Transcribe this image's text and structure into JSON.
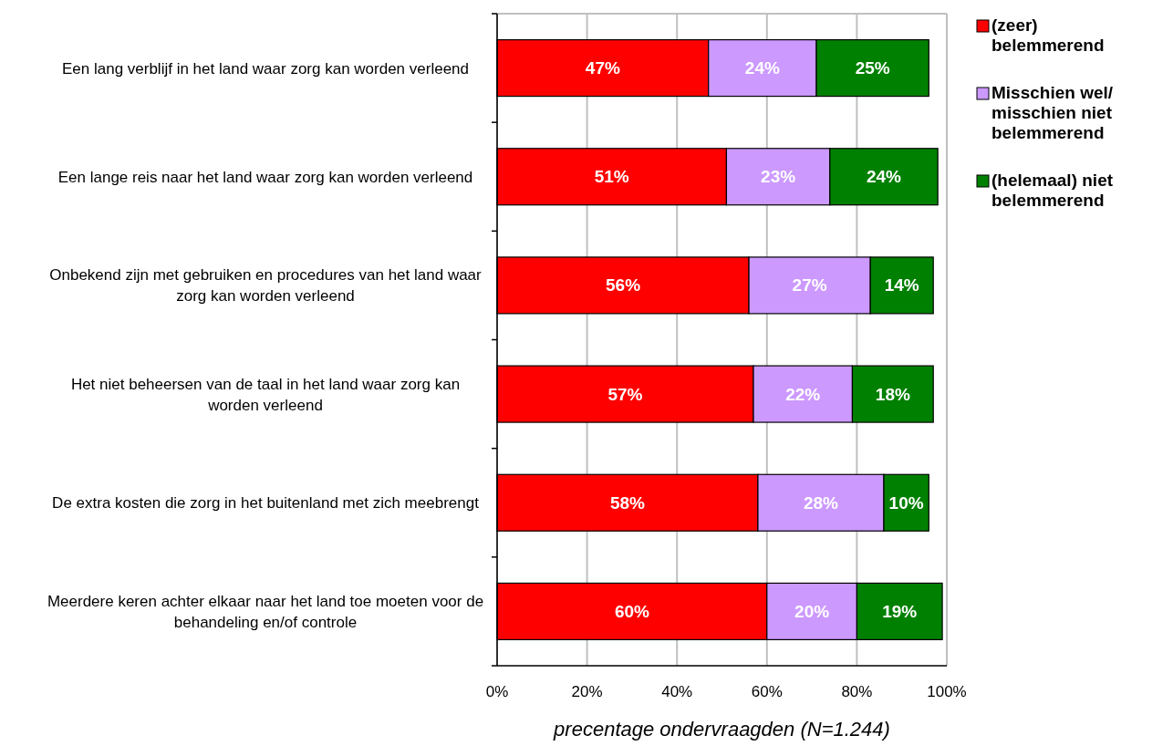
{
  "chart_data": {
    "type": "bar",
    "orientation": "horizontal",
    "stacked": true,
    "xlabel": "precentage ondervraagden (N=1.244)",
    "categories": [
      "Een lang verblijf in het land waar zorg kan worden verleend",
      "Een lange reis naar het land waar zorg kan worden verleend",
      "Onbekend zijn met gebruiken en procedures van het land waar zorg kan worden verleend",
      "Het niet beheersen van de taal in het land waar zorg kan worden verleend",
      "De extra kosten die zorg in het buitenland met zich meebrengt",
      "Meerdere keren achter elkaar naar het land toe moeten voor de behandeling en/of controle"
    ],
    "series": [
      {
        "name": "(zeer) belemmerend",
        "color": "#ff0000",
        "values": [
          47,
          51,
          56,
          57,
          58,
          60
        ],
        "value_labels": [
          "47%",
          "51%",
          "56%",
          "57%",
          "58%",
          "60%"
        ]
      },
      {
        "name": "Misschien wel/ misschien niet belemmerend",
        "color": "#cc99ff",
        "values": [
          24,
          23,
          27,
          22,
          28,
          20
        ],
        "value_labels": [
          "24%",
          "23%",
          "27%",
          "22%",
          "28%",
          "20%"
        ]
      },
      {
        "name": "(helemaal) niet belemmerend",
        "color": "#008000",
        "values": [
          25,
          24,
          14,
          18,
          10,
          19
        ],
        "value_labels": [
          "25%",
          "24%",
          "14%",
          "18%",
          "10%",
          "19%"
        ]
      }
    ],
    "xlim": [
      0,
      100
    ],
    "xticks": [
      {
        "value": 0,
        "label": "0%"
      },
      {
        "value": 20,
        "label": "20%"
      },
      {
        "value": 40,
        "label": "40%"
      },
      {
        "value": 60,
        "label": "60%"
      },
      {
        "value": 80,
        "label": "80%"
      },
      {
        "value": 100,
        "label": "100%"
      }
    ],
    "grid": "x",
    "legend": "right"
  }
}
